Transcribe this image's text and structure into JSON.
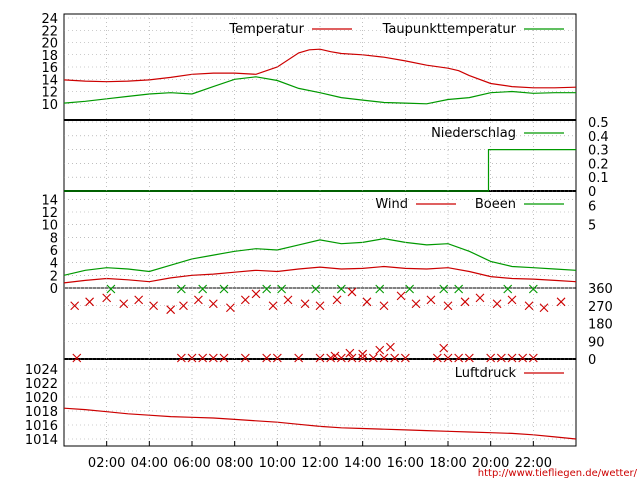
{
  "source_url": "http://www.tiefliegen.de/wetter/",
  "x_axis": {
    "ticks": [
      "02:00",
      "04:00",
      "06:00",
      "08:00",
      "10:00",
      "12:00",
      "14:00",
      "16:00",
      "18:00",
      "20:00",
      "22:00"
    ],
    "tick_hours": [
      2,
      4,
      6,
      8,
      10,
      12,
      14,
      16,
      18,
      20,
      22
    ],
    "range_hours": [
      0,
      24
    ]
  },
  "chart_data": [
    {
      "type": "line",
      "panel": "temperature",
      "ylim": [
        8,
        24
      ],
      "y_ticks": [
        10,
        12,
        14,
        16,
        18,
        20,
        22,
        24
      ],
      "grid": true,
      "legend_placement": "top-right",
      "series": [
        {
          "name": "Temperatur",
          "color": "#cc0000",
          "x": [
            0,
            1,
            2,
            3,
            4,
            5,
            6,
            7,
            8,
            9,
            10,
            11,
            11.5,
            12,
            12.5,
            13,
            14,
            15,
            16,
            17,
            18,
            18.5,
            19,
            20,
            21,
            22,
            23,
            24
          ],
          "y": [
            13.9,
            13.7,
            13.6,
            13.7,
            13.9,
            14.3,
            14.8,
            15.0,
            15.0,
            14.8,
            16.0,
            18.3,
            18.8,
            18.9,
            18.5,
            18.2,
            18.0,
            17.6,
            17.0,
            16.3,
            15.8,
            15.4,
            14.6,
            13.3,
            12.8,
            12.6,
            12.6,
            12.7
          ]
        },
        {
          "name": "Taupunkttemperatur",
          "color": "#009900",
          "x": [
            0,
            1,
            2,
            3,
            4,
            5,
            6,
            7,
            8,
            9,
            10,
            11,
            12,
            13,
            14,
            15,
            16,
            17,
            18,
            19,
            20,
            21,
            22,
            23,
            24
          ],
          "y": [
            10.1,
            10.4,
            10.8,
            11.2,
            11.6,
            11.8,
            11.6,
            12.8,
            14.0,
            14.4,
            13.8,
            12.5,
            11.8,
            11.0,
            10.6,
            10.2,
            10.1,
            10.0,
            10.7,
            11.0,
            11.8,
            12.0,
            11.7,
            11.8,
            11.8
          ]
        }
      ]
    },
    {
      "type": "line",
      "panel": "precipitation",
      "ylim": [
        0,
        0.5
      ],
      "y_ticks": [
        0,
        0.1,
        0.2,
        0.3,
        0.4,
        0.5
      ],
      "grid": true,
      "legend_placement": "top-right",
      "series": [
        {
          "name": "Niederschlag",
          "color": "#009900",
          "x": [
            0,
            19.9,
            19.9,
            24
          ],
          "y": [
            0,
            0,
            0.3,
            0.3
          ]
        }
      ]
    },
    {
      "type": "line",
      "panel": "wind",
      "ylim": [
        0,
        15
      ],
      "y_ticks": [
        0,
        2,
        4,
        6,
        8,
        10,
        12,
        14
      ],
      "y2_ticks": [
        "5",
        "6"
      ],
      "y2_tick_values": [
        10,
        13
      ],
      "grid": true,
      "legend_placement": "top-right",
      "series": [
        {
          "name": "Wind",
          "color": "#cc0000",
          "x": [
            0,
            1,
            2,
            3,
            4,
            5,
            6,
            7,
            8,
            9,
            10,
            11,
            12,
            13,
            14,
            15,
            16,
            17,
            18,
            19,
            20,
            21,
            22,
            23,
            24
          ],
          "y": [
            0.8,
            1.2,
            1.5,
            1.3,
            1.0,
            1.6,
            2.0,
            2.2,
            2.5,
            2.8,
            2.6,
            3.0,
            3.3,
            3.0,
            3.1,
            3.4,
            3.1,
            3.0,
            3.2,
            2.6,
            1.8,
            1.5,
            1.4,
            1.2,
            1.0
          ]
        },
        {
          "name": "Boeen",
          "color": "#009900",
          "x": [
            0,
            1,
            2,
            3,
            4,
            5,
            6,
            7,
            8,
            9,
            10,
            11,
            12,
            13,
            14,
            15,
            16,
            17,
            18,
            19,
            20,
            21,
            22,
            23,
            24
          ],
          "y": [
            2.0,
            2.8,
            3.2,
            3.0,
            2.6,
            3.6,
            4.6,
            5.2,
            5.8,
            6.2,
            6.0,
            6.8,
            7.6,
            7.0,
            7.2,
            7.8,
            7.2,
            6.8,
            7.0,
            5.8,
            4.2,
            3.4,
            3.2,
            3.0,
            2.8
          ]
        }
      ]
    },
    {
      "type": "scatter",
      "panel": "wind_direction",
      "ylim": [
        0,
        360
      ],
      "y2_ticks": [
        0,
        90,
        180,
        270,
        360
      ],
      "grid": true,
      "series": [
        {
          "name": "",
          "color": "#cc0000",
          "x": [
            0.5,
            1.2,
            2.0,
            2.8,
            3.5,
            4.2,
            5.0,
            5.6,
            6.3,
            7.0,
            7.8,
            8.5,
            9.0,
            9.8,
            10.5,
            11.3,
            12.0,
            12.8,
            13.5,
            14.2,
            15.0,
            15.8,
            16.5,
            17.2,
            18.0,
            18.8,
            19.5,
            20.3,
            21.0,
            21.8,
            22.5,
            23.3
          ],
          "y": [
            270,
            290,
            310,
            280,
            300,
            270,
            250,
            270,
            300,
            280,
            260,
            300,
            330,
            270,
            300,
            280,
            270,
            300,
            340,
            290,
            270,
            320,
            280,
            300,
            270,
            290,
            310,
            280,
            300,
            270,
            260,
            290
          ]
        },
        {
          "name": "",
          "color": "#009900",
          "x": [
            2.2,
            5.5,
            6.5,
            7.5,
            9.5,
            10.2,
            11.8,
            13.0,
            14.8,
            16.2,
            17.8,
            18.5,
            20.8,
            22.0
          ],
          "y": [
            355,
            355,
            355,
            355,
            355,
            355,
            355,
            355,
            355,
            355,
            355,
            355,
            355,
            355
          ]
        },
        {
          "name": "",
          "color": "#cc0000",
          "x": [
            0.6,
            5.5,
            6.0,
            6.5,
            7.0,
            7.5,
            8.5,
            9.5,
            10.0,
            11.0,
            12.0,
            12.5,
            13.0,
            13.5,
            14.0,
            14.5,
            15.0,
            15.5,
            16.0,
            17.5,
            18.0,
            18.5,
            19.0,
            20.0,
            20.5,
            21.0,
            21.5,
            22.0
          ],
          "y": [
            5,
            5,
            5,
            5,
            5,
            5,
            5,
            5,
            5,
            5,
            5,
            5,
            5,
            5,
            5,
            5,
            5,
            5,
            5,
            5,
            5,
            5,
            5,
            5,
            5,
            5,
            5,
            5
          ]
        },
        {
          "name": "",
          "color": "#cc0000",
          "x": [
            12.7,
            13.4,
            14.0,
            14.8,
            15.3,
            17.8
          ],
          "y": [
            15,
            30,
            25,
            45,
            60,
            55
          ]
        }
      ]
    },
    {
      "type": "line",
      "panel": "pressure",
      "ylim": [
        1013,
        1025
      ],
      "y_ticks": [
        1014,
        1016,
        1018,
        1020,
        1022,
        1024
      ],
      "grid": true,
      "legend_placement": "top-right",
      "series": [
        {
          "name": "Luftdruck",
          "color": "#cc0000",
          "x": [
            0,
            1,
            2,
            3,
            4,
            5,
            6,
            7,
            8,
            9,
            10,
            11,
            12,
            13,
            14,
            15,
            16,
            17,
            18,
            19,
            20,
            21,
            22,
            23,
            24
          ],
          "y": [
            1018.4,
            1018.2,
            1017.9,
            1017.6,
            1017.4,
            1017.2,
            1017.1,
            1017.0,
            1016.8,
            1016.6,
            1016.4,
            1016.1,
            1015.8,
            1015.6,
            1015.5,
            1015.4,
            1015.3,
            1015.2,
            1015.1,
            1015.0,
            1014.9,
            1014.8,
            1014.6,
            1014.3,
            1014.0
          ]
        }
      ]
    }
  ]
}
